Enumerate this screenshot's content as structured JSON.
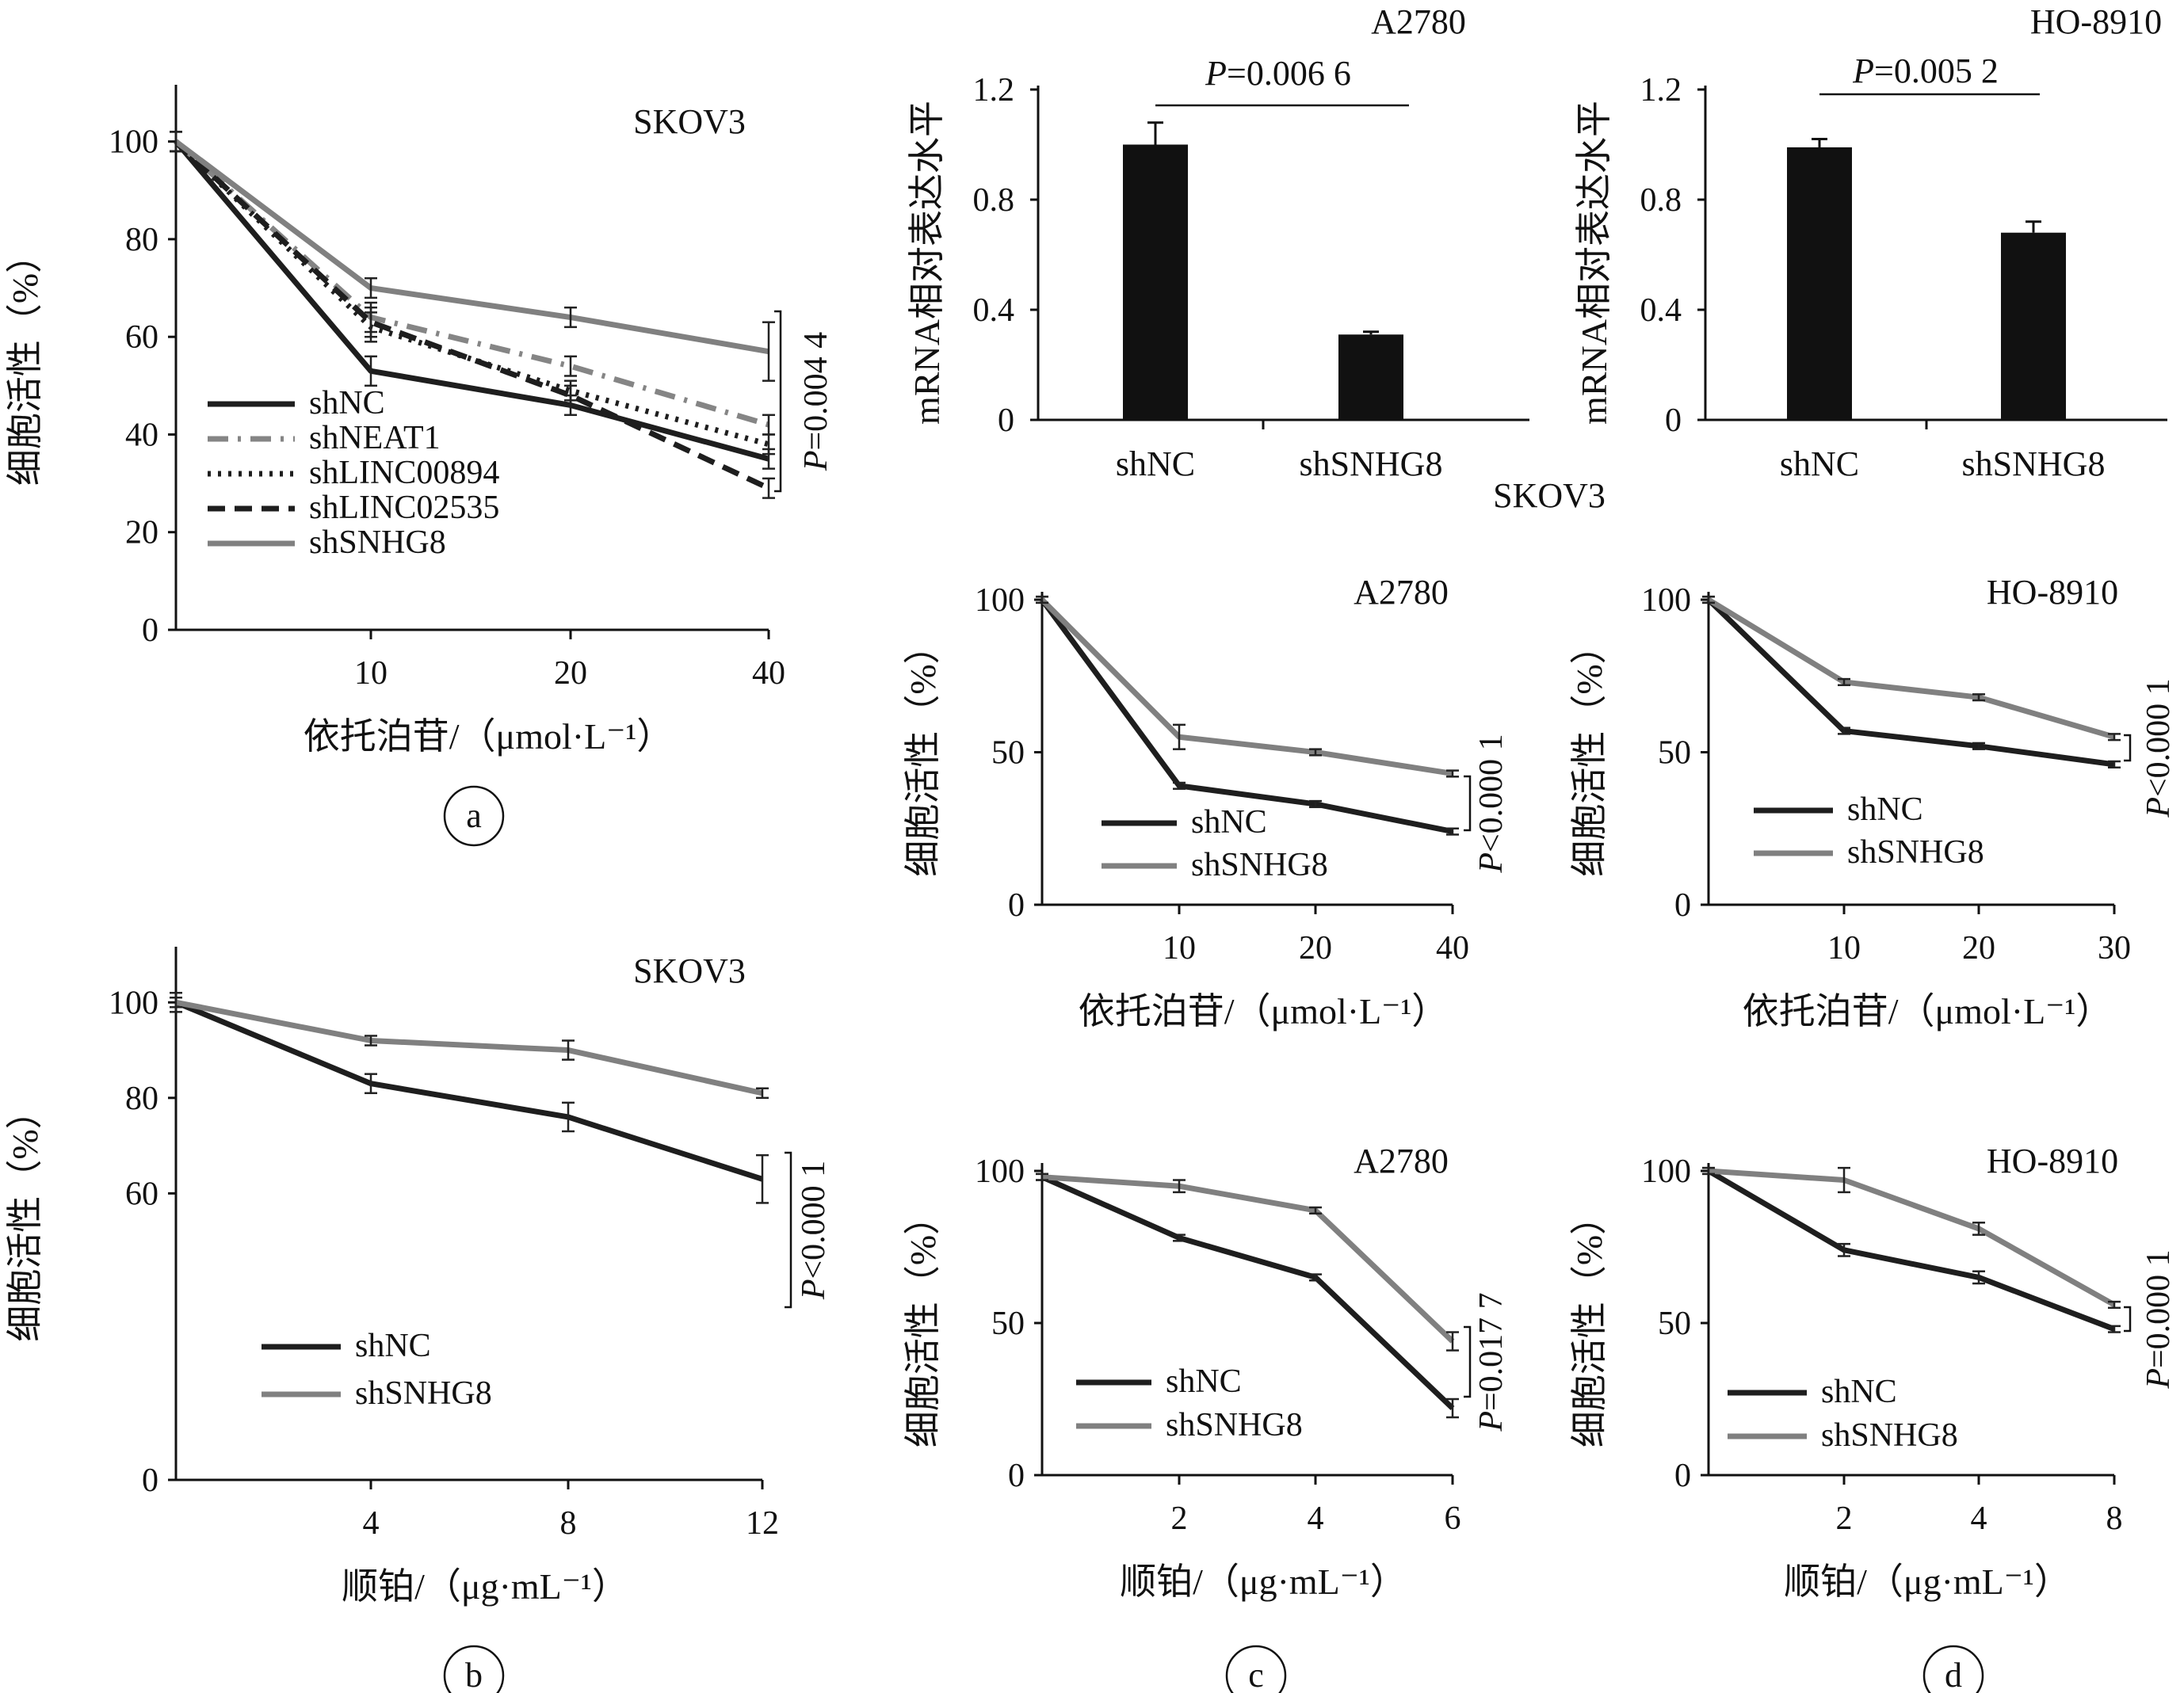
{
  "colors": {
    "shNC": "#1e1e1e",
    "shSNHG8": "#808080",
    "shNEAT1": "#858585",
    "shLINC00894": "#1e1e1e",
    "shLINC02535": "#1e1e1e",
    "axis": "#111111",
    "bar": "#111111"
  },
  "panel_letters": [
    "a",
    "b",
    "c",
    "d"
  ],
  "orphan_label": "SKOV3",
  "chart_data": [
    {
      "id": "a",
      "type": "line",
      "title": "SKOV3",
      "xlabel": "依托泊苷/（μmol·L⁻¹）",
      "ylabel": "细胞活性（%）",
      "x": [
        0,
        10,
        20,
        40
      ],
      "xticks": [
        "10",
        "20",
        "40"
      ],
      "ylim": [
        0,
        110
      ],
      "yticks": [
        0,
        20,
        40,
        60,
        80,
        100
      ],
      "series": [
        {
          "name": "shNC",
          "values": [
            100,
            53,
            46,
            35
          ],
          "err": [
            2,
            3,
            2,
            2
          ],
          "style": "solid"
        },
        {
          "name": "shNEAT1",
          "values": [
            100,
            64,
            54,
            42
          ],
          "err": [
            2,
            3,
            2,
            2
          ],
          "style": "dashdot"
        },
        {
          "name": "shLINC00894",
          "values": [
            100,
            62,
            49,
            38
          ],
          "err": [
            2,
            3,
            2,
            2
          ],
          "style": "dotted"
        },
        {
          "name": "shLINC02535",
          "values": [
            100,
            63,
            48,
            29
          ],
          "err": [
            2,
            3,
            2,
            2
          ],
          "style": "dashed"
        },
        {
          "name": "shSNHG8",
          "values": [
            100,
            70,
            64,
            57
          ],
          "err": [
            2,
            2,
            2,
            6
          ],
          "style": "solid"
        }
      ],
      "pvalue": "P=0.004 4"
    },
    {
      "id": "b",
      "type": "line",
      "title": "SKOV3",
      "xlabel": "顺铂/（μg·mL⁻¹）",
      "ylabel": "细胞活性（%）",
      "x": [
        0,
        4,
        8,
        12
      ],
      "xticks": [
        "4",
        "8",
        "12"
      ],
      "ylim": [
        0,
        110
      ],
      "yticks": [
        0,
        60,
        80,
        100
      ],
      "series": [
        {
          "name": "shNC",
          "values": [
            100,
            83,
            76,
            63
          ],
          "err": [
            2,
            2,
            3,
            5
          ],
          "style": "solid"
        },
        {
          "name": "shSNHG8",
          "values": [
            100,
            92,
            90,
            81
          ],
          "err": [
            1,
            1,
            2,
            1
          ],
          "style": "solid"
        }
      ],
      "pvalue": "P<0.000 1"
    },
    {
      "id": "bar-a2780",
      "type": "bar",
      "title": "A2780",
      "ylabel": "mRNA相对表达水平",
      "categories": [
        "shNC",
        "shSNHG8"
      ],
      "values": [
        1.0,
        0.31
      ],
      "err": [
        0.08,
        0.01
      ],
      "ylim": [
        0,
        1.2
      ],
      "yticks": [
        "0",
        "0.4",
        "0.8",
        "1.2"
      ],
      "pvalue": "P=0.006 6"
    },
    {
      "id": "bar-ho8910",
      "type": "bar",
      "title": "HO-8910",
      "ylabel": "mRNA相对表达水平",
      "categories": [
        "shNC",
        "shSNHG8"
      ],
      "values": [
        0.99,
        0.68
      ],
      "err": [
        0.03,
        0.04
      ],
      "ylim": [
        0,
        1.2
      ],
      "yticks": [
        "0",
        "0.4",
        "0.8",
        "1.2"
      ],
      "pvalue": "P=0.005 2"
    },
    {
      "id": "c-eto",
      "type": "line",
      "title": "A2780",
      "xlabel": "依托泊苷/（μmol·L⁻¹）",
      "ylabel": "细胞活性（%）",
      "x": [
        0,
        10,
        20,
        40
      ],
      "xticks": [
        "10",
        "20",
        "40"
      ],
      "ylim": [
        0,
        100
      ],
      "yticks": [
        0,
        50,
        100
      ],
      "series": [
        {
          "name": "shNC",
          "values": [
            100,
            39,
            33,
            24
          ],
          "err": [
            1,
            1,
            1,
            1
          ],
          "style": "solid"
        },
        {
          "name": "shSNHG8",
          "values": [
            100,
            55,
            50,
            43
          ],
          "err": [
            1,
            4,
            1,
            1
          ],
          "style": "solid"
        }
      ],
      "pvalue": "P<0.000 1"
    },
    {
      "id": "d-eto",
      "type": "line",
      "title": "HO-8910",
      "xlabel": "依托泊苷/（μmol·L⁻¹）",
      "ylabel": "细胞活性（%）",
      "x": [
        0,
        10,
        20,
        30
      ],
      "xticks": [
        "10",
        "20",
        "30"
      ],
      "ylim": [
        0,
        100
      ],
      "yticks": [
        0,
        50,
        100
      ],
      "series": [
        {
          "name": "shNC",
          "values": [
            100,
            57,
            52,
            46
          ],
          "err": [
            1,
            1,
            1,
            1
          ],
          "style": "solid"
        },
        {
          "name": "shSNHG8",
          "values": [
            100,
            73,
            68,
            55
          ],
          "err": [
            1,
            1,
            1,
            1
          ],
          "style": "solid"
        }
      ],
      "pvalue": "P<0.000 1"
    },
    {
      "id": "c-cis",
      "type": "line",
      "title": "A2780",
      "xlabel": "顺铂/（μg·mL⁻¹）",
      "ylabel": "细胞活性（%）",
      "x": [
        0,
        2,
        4,
        6
      ],
      "xticks": [
        "2",
        "4",
        "6"
      ],
      "ylim": [
        0,
        100
      ],
      "yticks": [
        0,
        50,
        100
      ],
      "series": [
        {
          "name": "shNC",
          "values": [
            98,
            78,
            65,
            22
          ],
          "err": [
            1,
            1,
            1,
            3
          ],
          "style": "solid"
        },
        {
          "name": "shSNHG8",
          "values": [
            98,
            95,
            87,
            44
          ],
          "err": [
            1,
            2,
            1,
            3
          ],
          "style": "solid"
        }
      ],
      "pvalue": "P=0.017 7"
    },
    {
      "id": "d-cis",
      "type": "line",
      "title": "HO-8910",
      "xlabel": "顺铂/（μg·mL⁻¹）",
      "ylabel": "细胞活性（%）",
      "x": [
        0,
        2,
        4,
        8
      ],
      "xticks": [
        "2",
        "4",
        "8"
      ],
      "ylim": [
        0,
        100
      ],
      "yticks": [
        0,
        50,
        100
      ],
      "series": [
        {
          "name": "shNC",
          "values": [
            100,
            74,
            65,
            48
          ],
          "err": [
            1,
            2,
            2,
            1
          ],
          "style": "solid"
        },
        {
          "name": "shSNHG8",
          "values": [
            100,
            97,
            81,
            56
          ],
          "err": [
            1,
            4,
            2,
            1
          ],
          "style": "solid"
        }
      ],
      "pvalue": "P=0.000 1"
    }
  ]
}
